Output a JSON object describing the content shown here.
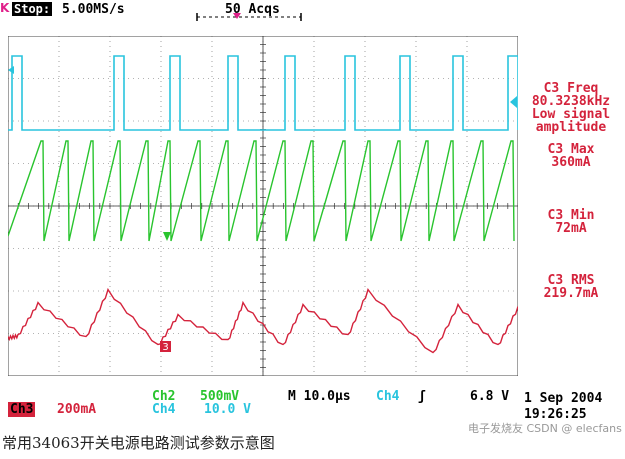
{
  "header": {
    "trigger_marker": "K",
    "state": "Stop:",
    "sample_rate": "5.00MS/s",
    "acquisitions": "50 Acqs"
  },
  "measurements": [
    {
      "label": "C3 Freq",
      "value": "80.3238kHz",
      "note1": "Low signal",
      "note2": "amplitude"
    },
    {
      "label": "C3 Max",
      "value": "360mA"
    },
    {
      "label": "C3 Min",
      "value": "72mA"
    },
    {
      "label": "C3 RMS",
      "value": "219.7mA"
    }
  ],
  "channels": {
    "ch3": {
      "name": "Ch3",
      "scale": "200mA",
      "color": "#d4233c"
    },
    "ch2": {
      "name": "Ch2",
      "scale": "500mV",
      "color": "#29c42e"
    },
    "ch4": {
      "name": "Ch4",
      "scale": "10.0 V",
      "color": "#29c4de"
    }
  },
  "timebase": {
    "label": "M 10.0µs",
    "trigger_source": "Ch4",
    "trigger_slope": "ʃ",
    "trigger_level": "6.8 V"
  },
  "datetime": {
    "date": "1 Sep 2004",
    "time": "19:26:25"
  },
  "caption": "常用34063开关电源电路测试参数示意图",
  "watermark": "电子发烧友 CSDN @ elecfans",
  "ch3_marker": "3",
  "colors": {
    "grid": "#555555",
    "cyan": "#29c4de",
    "green": "#29c42e",
    "red": "#d4233c",
    "magenta": "#e0208a"
  }
}
